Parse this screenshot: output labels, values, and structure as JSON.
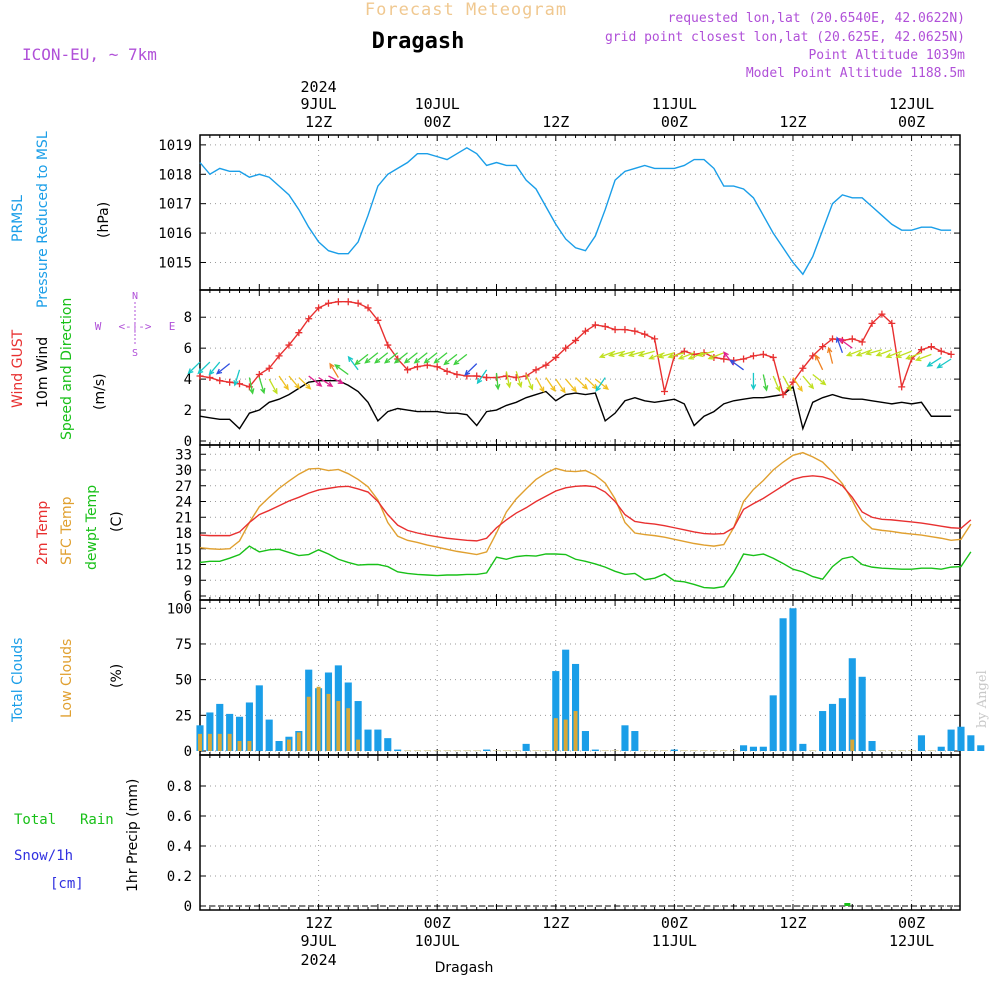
{
  "header": {
    "subtitle": "Forecast Meteogram",
    "title": "Dragash",
    "model": "ICON-EU, ~ 7km",
    "requested": "requested lon,lat (20.6540E, 42.0622N)",
    "gridpoint": "grid point closest lon,lat (20.625E, 42.0625N)",
    "point_alt": "Point Altitude 1039m",
    "model_alt": "Model Point Altitude 1188.5m",
    "bottom_label": "Dragash",
    "watermark": "by Angel"
  },
  "colors": {
    "pressure": "#1a9ee8",
    "gust": "#e83030",
    "wind": "#000000",
    "temp2m": "#e83030",
    "sfc": "#e0a030",
    "dewpt": "#18c018",
    "total_clouds": "#1a9ee8",
    "low_clouds": "#d8a838",
    "label_purple": "#b050d8",
    "rain": "#18c018",
    "snow": "#3030e0"
  },
  "time_axis": {
    "start": "2024-07-09T00Z",
    "step_hours": 1,
    "top_ticks": [
      {
        "hour": 12,
        "l1": "2024",
        "l2": "9JUL",
        "l3": "12Z"
      },
      {
        "hour": 24,
        "l1": "",
        "l2": "10JUL",
        "l3": "00Z"
      },
      {
        "hour": 36,
        "l1": "",
        "l2": "",
        "l3": "12Z"
      },
      {
        "hour": 48,
        "l1": "",
        "l2": "11JUL",
        "l3": "00Z"
      },
      {
        "hour": 60,
        "l1": "",
        "l2": "",
        "l3": "12Z"
      },
      {
        "hour": 72,
        "l1": "",
        "l2": "12JUL",
        "l3": "00Z"
      }
    ],
    "bottom_ticks": [
      {
        "hour": 12,
        "l1": "12Z",
        "l2": "9JUL",
        "l3": "2024"
      },
      {
        "hour": 24,
        "l1": "00Z",
        "l2": "10JUL",
        "l3": ""
      },
      {
        "hour": 36,
        "l1": "12Z",
        "l2": "",
        "l3": ""
      },
      {
        "hour": 48,
        "l1": "00Z",
        "l2": "11JUL",
        "l3": ""
      },
      {
        "hour": 60,
        "l1": "12Z",
        "l2": "",
        "l3": ""
      },
      {
        "hour": 72,
        "l1": "00Z",
        "l2": "12JUL",
        "l3": ""
      }
    ]
  },
  "panels": {
    "pressure": {
      "label1": "PRMSL",
      "label2": "Pressure Reduced to MSL",
      "unit": "(hPa)"
    },
    "wind": {
      "label1": "Wind GUST",
      "label2": "10m Wind",
      "label3": "Speed and Direction",
      "unit": "(m/s)",
      "compass_n": "N",
      "compass_s": "S",
      "compass_w": "W",
      "compass_e": "E",
      "compass_mid": "<-|->"
    },
    "temp": {
      "label1": "2m Temp",
      "label2": "SFC Temp",
      "label3": "dewpt Temp",
      "unit": "(C)"
    },
    "clouds": {
      "label1": "Total Clouds",
      "label2": "Low Clouds",
      "unit": "(%)"
    },
    "precip": {
      "label1": "Total",
      "label1b": "Rain",
      "label2": "Snow/1h",
      "label3": "[cm]",
      "unit": "1hr Precip (mm)"
    }
  },
  "chart_data": [
    {
      "type": "line",
      "name": "pressure",
      "xlabel": "",
      "ylabel": "(hPa)",
      "ylim": [
        1014.2,
        1019.2
      ],
      "yticks": [
        1015,
        1016,
        1017,
        1018,
        1019
      ],
      "series": [
        {
          "name": "PRMSL",
          "x_start_hour": 0,
          "x_end_hour": 76,
          "values": [
            1018.4,
            1018.0,
            1018.2,
            1018.1,
            1018.1,
            1017.9,
            1018.0,
            1017.9,
            1017.6,
            1017.3,
            1016.8,
            1016.2,
            1015.7,
            1015.4,
            1015.3,
            1015.3,
            1015.7,
            1016.6,
            1017.6,
            1018.0,
            1018.2,
            1018.4,
            1018.7,
            1018.7,
            1018.6,
            1018.5,
            1018.7,
            1018.9,
            1018.7,
            1018.3,
            1018.4,
            1018.3,
            1018.3,
            1017.8,
            1017.5,
            1016.9,
            1016.3,
            1015.8,
            1015.5,
            1015.4,
            1015.9,
            1016.8,
            1017.8,
            1018.1,
            1018.2,
            1018.3,
            1018.2,
            1018.2,
            1018.2,
            1018.3,
            1018.5,
            1018.5,
            1018.2,
            1017.6,
            1017.6,
            1017.5,
            1017.2,
            1016.6,
            1016.0,
            1015.5,
            1015.0,
            1014.6,
            1015.2,
            1016.1,
            1017.0,
            1017.3,
            1017.2,
            1017.2,
            1016.9,
            1016.6,
            1016.3,
            1016.1,
            1016.1,
            1016.2,
            1016.2,
            1016.1,
            1016.1
          ]
        }
      ]
    },
    {
      "type": "line",
      "name": "wind",
      "xlabel": "",
      "ylabel": "(m/s)",
      "ylim": [
        0,
        9.5
      ],
      "yticks": [
        0,
        2,
        4,
        6,
        8
      ],
      "series": [
        {
          "name": "Wind GUST",
          "values": [
            4.2,
            4.1,
            3.9,
            3.8,
            3.7,
            3.5,
            4.3,
            4.7,
            5.5,
            6.2,
            7.0,
            7.9,
            8.6,
            8.9,
            9.0,
            9.0,
            8.9,
            8.6,
            7.8,
            6.2,
            5.3,
            4.6,
            4.8,
            4.9,
            4.8,
            4.5,
            4.3,
            4.2,
            4.2,
            4.1,
            4.1,
            4.2,
            4.1,
            4.2,
            4.6,
            4.9,
            5.4,
            6.0,
            6.5,
            7.1,
            7.5,
            7.4,
            7.2,
            7.2,
            7.1,
            6.9,
            6.6,
            3.2,
            5.5,
            5.8,
            5.6,
            5.7,
            5.4,
            5.3,
            5.2,
            5.3,
            5.5,
            5.6,
            5.4,
            3.0,
            3.8,
            4.7,
            5.5,
            6.1,
            6.6,
            6.5,
            6.6,
            6.4,
            7.6,
            8.2,
            7.6,
            3.5,
            5.3,
            5.9,
            6.1,
            5.8,
            5.6
          ]
        },
        {
          "name": "10m Wind",
          "values": [
            1.6,
            1.5,
            1.4,
            1.4,
            0.8,
            1.8,
            2.0,
            2.5,
            2.7,
            3.0,
            3.4,
            3.8,
            3.9,
            3.9,
            3.9,
            3.6,
            3.2,
            2.5,
            1.3,
            1.9,
            2.1,
            2.0,
            1.9,
            1.9,
            1.9,
            1.8,
            1.8,
            1.7,
            1.0,
            1.9,
            2.0,
            2.3,
            2.5,
            2.8,
            3.0,
            3.2,
            2.6,
            3.0,
            3.1,
            3.0,
            3.1,
            1.3,
            1.8,
            2.6,
            2.8,
            2.6,
            2.5,
            2.6,
            2.7,
            2.4,
            1.0,
            1.6,
            1.9,
            2.4,
            2.6,
            2.7,
            2.8,
            2.8,
            2.9,
            3.0,
            3.5,
            0.8,
            2.5,
            2.8,
            3.0,
            2.8,
            2.7,
            2.7,
            2.6,
            2.5,
            2.4,
            2.5,
            2.4,
            2.5,
            1.6,
            1.6,
            1.6
          ]
        }
      ]
    },
    {
      "type": "line",
      "name": "temperature",
      "xlabel": "",
      "ylabel": "(C)",
      "ylim": [
        6,
        34
      ],
      "yticks": [
        6,
        9,
        12,
        15,
        18,
        21,
        24,
        27,
        30,
        33
      ],
      "series": [
        {
          "name": "2m Temp",
          "values": [
            17.6,
            17.5,
            17.5,
            17.5,
            18.2,
            20.0,
            21.5,
            22.3,
            23.2,
            24.1,
            24.8,
            25.6,
            26.2,
            26.5,
            26.8,
            26.9,
            26.4,
            25.8,
            24.0,
            21.5,
            19.5,
            18.5,
            18.0,
            17.6,
            17.3,
            17.0,
            16.8,
            16.6,
            16.5,
            17.0,
            19.0,
            20.5,
            21.8,
            22.8,
            24.0,
            25.0,
            26.0,
            26.6,
            26.9,
            27.0,
            26.8,
            25.8,
            24.0,
            21.5,
            20.2,
            19.9,
            19.7,
            19.4,
            19.0,
            18.6,
            18.2,
            17.9,
            17.8,
            17.9,
            19.0,
            22.5,
            23.6,
            24.6,
            25.8,
            27.0,
            28.2,
            28.7,
            28.9,
            28.7,
            28.1,
            27.0,
            24.8,
            22.0,
            21.0,
            20.6,
            20.5,
            20.3,
            20.1,
            19.9,
            19.6,
            19.3,
            19.0,
            18.9,
            20.5
          ]
        },
        {
          "name": "SFC Temp",
          "values": [
            15.2,
            15.0,
            14.9,
            15.0,
            16.5,
            20.0,
            23.0,
            24.8,
            26.5,
            27.9,
            29.2,
            30.2,
            30.3,
            29.9,
            30.1,
            29.3,
            28.2,
            26.8,
            24.3,
            20.0,
            17.4,
            16.6,
            16.2,
            15.7,
            15.3,
            14.9,
            14.5,
            14.2,
            13.9,
            14.4,
            18.0,
            22.0,
            24.5,
            26.4,
            28.2,
            29.4,
            30.3,
            29.8,
            29.7,
            29.9,
            29.0,
            27.5,
            24.5,
            20.0,
            18.0,
            17.7,
            17.5,
            17.2,
            16.8,
            16.4,
            16.0,
            15.7,
            15.5,
            15.8,
            19.0,
            24.0,
            26.3,
            28.0,
            30.0,
            31.5,
            32.8,
            33.3,
            32.5,
            31.5,
            29.6,
            27.4,
            24.2,
            20.5,
            18.8,
            18.5,
            18.3,
            18.0,
            17.8,
            17.6,
            17.3,
            17.0,
            16.6,
            16.8,
            19.7
          ]
        },
        {
          "name": "dewpt Temp",
          "values": [
            12.4,
            12.6,
            12.6,
            13.2,
            13.9,
            15.5,
            14.4,
            14.8,
            14.9,
            14.3,
            13.7,
            13.9,
            14.8,
            14.0,
            13.0,
            12.4,
            11.9,
            12.0,
            12.0,
            11.6,
            10.6,
            10.3,
            10.1,
            10.0,
            9.9,
            10.0,
            10.0,
            10.1,
            10.1,
            10.4,
            13.4,
            13.0,
            13.5,
            13.7,
            13.6,
            14.0,
            14.0,
            13.9,
            13.0,
            12.6,
            12.1,
            11.5,
            10.7,
            10.1,
            10.3,
            9.1,
            9.4,
            10.2,
            8.9,
            8.7,
            8.2,
            7.6,
            7.5,
            7.8,
            10.5,
            14.0,
            13.7,
            14.0,
            13.2,
            12.2,
            11.1,
            10.6,
            9.7,
            9.2,
            11.6,
            13.1,
            13.5,
            12.0,
            11.5,
            11.3,
            11.2,
            11.1,
            11.1,
            11.3,
            11.3,
            11.1,
            11.5,
            11.6,
            14.4
          ]
        }
      ]
    },
    {
      "type": "bar",
      "name": "clouds",
      "xlabel": "",
      "ylabel": "(%)",
      "ylim": [
        0,
        103
      ],
      "yticks": [
        0,
        25,
        50,
        75,
        100
      ],
      "series": [
        {
          "name": "Total Clouds",
          "values": [
            18,
            27,
            33,
            26,
            24,
            34,
            46,
            22,
            7,
            10,
            14,
            57,
            44,
            55,
            60,
            48,
            35,
            15,
            15,
            9,
            1,
            0,
            0,
            0,
            0,
            0,
            0,
            0,
            0,
            1,
            0,
            0,
            0,
            5,
            0,
            0,
            56,
            71,
            61,
            14,
            1,
            0,
            0,
            18,
            14,
            0,
            0,
            0,
            1,
            0,
            0,
            0,
            0,
            0,
            0,
            4,
            3,
            3,
            39,
            93,
            100,
            5,
            0,
            28,
            33,
            37,
            65,
            52,
            7,
            0,
            0,
            0,
            0,
            11,
            0,
            3,
            15,
            17,
            11,
            4
          ]
        },
        {
          "name": "Low Clouds",
          "values": [
            12,
            12,
            12,
            12,
            7,
            7,
            0,
            0,
            0,
            8,
            13,
            38,
            45,
            40,
            35,
            30,
            8,
            0,
            0,
            0,
            0,
            0,
            0,
            0,
            0,
            0,
            0,
            0,
            0,
            0,
            0,
            0,
            0,
            0,
            0,
            0,
            23,
            22,
            28,
            0,
            0,
            0,
            0,
            0,
            0,
            0,
            0,
            0,
            0,
            0,
            0,
            0,
            0,
            0,
            0,
            0,
            0,
            0,
            0,
            0,
            0,
            0,
            0,
            0,
            0,
            0,
            8,
            0,
            0,
            0,
            0,
            0,
            0,
            0,
            0,
            0,
            0,
            0,
            0,
            0
          ]
        }
      ]
    },
    {
      "type": "bar",
      "name": "precipitation",
      "xlabel": "",
      "ylabel": "1hr Precip (mm)",
      "ylim": [
        0,
        0.98
      ],
      "yticks": [
        0,
        0.2,
        0.4,
        0.6,
        0.8
      ],
      "series": [
        {
          "name": "Total Rain",
          "points": [
            {
              "hour": 65.5,
              "value": 0.02
            }
          ]
        },
        {
          "name": "Snow/1h",
          "points": []
        }
      ]
    }
  ]
}
